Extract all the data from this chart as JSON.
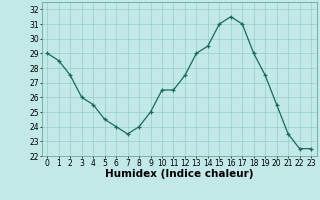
{
  "x": [
    0,
    1,
    2,
    3,
    4,
    5,
    6,
    7,
    8,
    9,
    10,
    11,
    12,
    13,
    14,
    15,
    16,
    17,
    18,
    19,
    20,
    21,
    22,
    23
  ],
  "y": [
    29.0,
    28.5,
    27.5,
    26.0,
    25.5,
    24.5,
    24.0,
    23.5,
    24.0,
    25.0,
    26.5,
    26.5,
    27.5,
    29.0,
    29.5,
    31.0,
    31.5,
    31.0,
    29.0,
    27.5,
    25.5,
    23.5,
    22.5,
    22.5
  ],
  "xlabel": "Humidex (Indice chaleur)",
  "xlim": [
    -0.5,
    23.5
  ],
  "ylim": [
    22,
    32.5
  ],
  "yticks": [
    22,
    23,
    24,
    25,
    26,
    27,
    28,
    29,
    30,
    31,
    32
  ],
  "xticks": [
    0,
    1,
    2,
    3,
    4,
    5,
    6,
    7,
    8,
    9,
    10,
    11,
    12,
    13,
    14,
    15,
    16,
    17,
    18,
    19,
    20,
    21,
    22,
    23
  ],
  "line_color": "#1a6b5a",
  "marker": "+",
  "bg_color": "#c2e8e8",
  "grid_color": "#98cccc",
  "tick_fontsize": 5.5,
  "label_fontsize": 7.5
}
